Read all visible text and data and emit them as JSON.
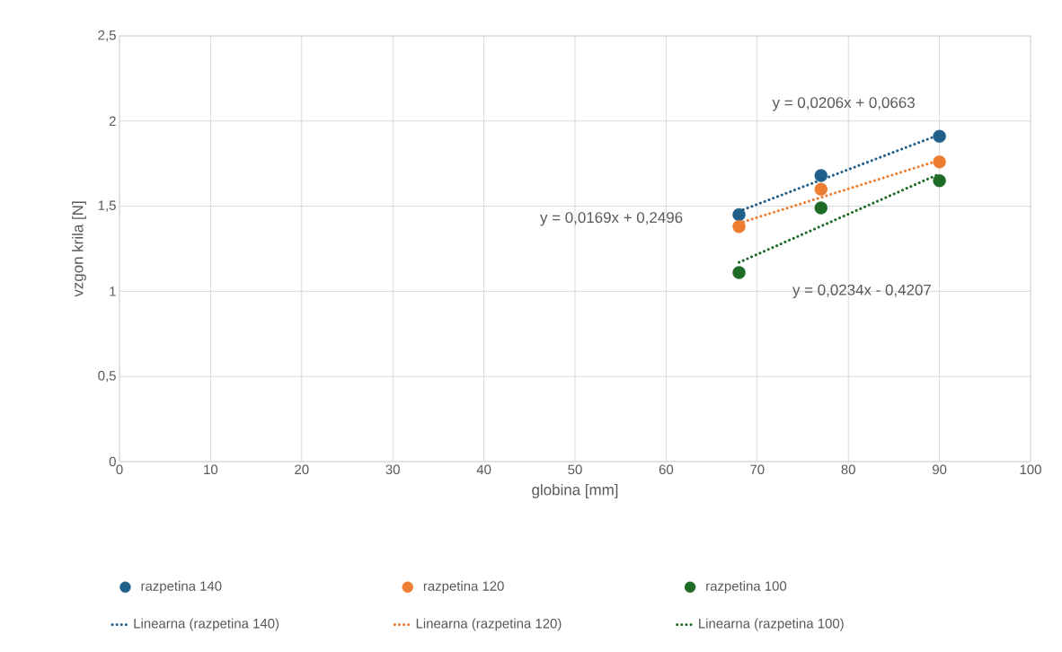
{
  "chart_data": {
    "type": "scatter",
    "xlabel": "globina [mm]",
    "ylabel": "vzgon krila [N]",
    "xlim": [
      0,
      100
    ],
    "xticks": [
      0,
      10,
      20,
      30,
      40,
      50,
      60,
      70,
      80,
      90,
      100
    ],
    "ylim": [
      0,
      2.5
    ],
    "yticks": [
      0,
      {
        "value": 0.5,
        "label": "0,5"
      },
      1,
      {
        "value": 1.5,
        "label": "1,5"
      },
      2,
      {
        "value": 2.5,
        "label": "2,5"
      }
    ],
    "grid": true,
    "legend": "bottom",
    "series": [
      {
        "name": "razpetina 140",
        "marker": "circle",
        "color": "#1f5f8a",
        "x": [
          68,
          77,
          90
        ],
        "values": [
          1.45,
          1.68,
          1.91
        ]
      },
      {
        "name": "razpetina 120",
        "marker": "circle",
        "color": "#ed7d31",
        "x": [
          68,
          77,
          90
        ],
        "values": [
          1.38,
          1.6,
          1.76
        ]
      },
      {
        "name": "razpetina 100",
        "marker": "circle",
        "color": "#1e6b26",
        "x": [
          68,
          77,
          90
        ],
        "values": [
          1.11,
          1.49,
          1.65
        ]
      },
      {
        "name": "Linearna (razpetina 140)",
        "type": "line",
        "line_style": "dotted",
        "color": "#1f5f8a",
        "x": [
          68,
          90
        ],
        "values": [
          1.47,
          1.92
        ]
      },
      {
        "name": "Linearna (razpetina 120)",
        "type": "line",
        "line_style": "dotted",
        "color": "#ed7d31",
        "x": [
          68,
          90
        ],
        "values": [
          1.4,
          1.77
        ]
      },
      {
        "name": "Linearna (razpetina 100)",
        "type": "line",
        "line_style": "dotted",
        "color": "#1e6b26",
        "x": [
          68,
          90
        ],
        "values": [
          1.17,
          1.69
        ]
      }
    ],
    "annotations": [
      "y = 0,0206x + 0,0663",
      "y = 0,0169x + 0,2496",
      "y = 0,0234x - 0,4207"
    ]
  }
}
